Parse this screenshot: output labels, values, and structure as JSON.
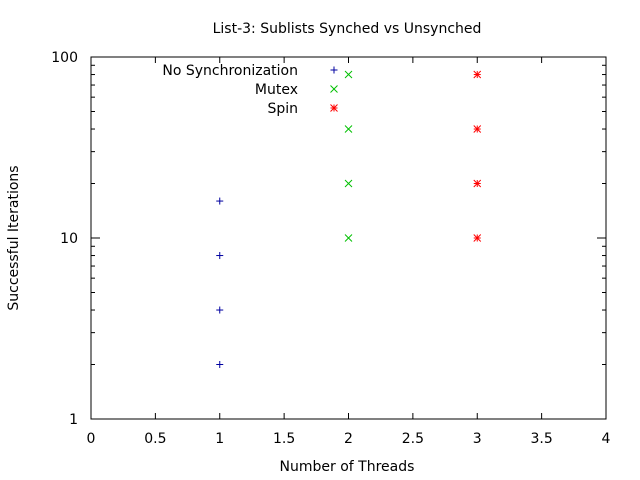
{
  "chart_data": {
    "type": "scatter",
    "title": "List-3: Sublists Synched vs Unsynched",
    "xlabel": "Number of Threads",
    "ylabel": "Successful Iterations",
    "xlim": [
      0,
      4
    ],
    "ylim": [
      1,
      100
    ],
    "yscale": "log",
    "xticks": [
      "0",
      "0.5",
      "1",
      "1.5",
      "2",
      "2.5",
      "3",
      "3.5",
      "4"
    ],
    "yticks": [
      "1",
      "10",
      "100"
    ],
    "grid": false,
    "legend_position": "top-left",
    "series": [
      {
        "name": "No Synchronization",
        "marker": "plus",
        "color": "#0000a0",
        "points": [
          {
            "x": 1,
            "y": 2
          },
          {
            "x": 1,
            "y": 4
          },
          {
            "x": 1,
            "y": 8
          },
          {
            "x": 1,
            "y": 16
          }
        ]
      },
      {
        "name": "Mutex",
        "marker": "cross",
        "color": "#00c000",
        "points": [
          {
            "x": 2,
            "y": 10
          },
          {
            "x": 2,
            "y": 20
          },
          {
            "x": 2,
            "y": 40
          },
          {
            "x": 2,
            "y": 80
          }
        ]
      },
      {
        "name": "Spin",
        "marker": "star",
        "color": "#ff0000",
        "points": [
          {
            "x": 3,
            "y": 10
          },
          {
            "x": 3,
            "y": 20
          },
          {
            "x": 3,
            "y": 40
          },
          {
            "x": 3,
            "y": 80
          }
        ]
      }
    ]
  }
}
